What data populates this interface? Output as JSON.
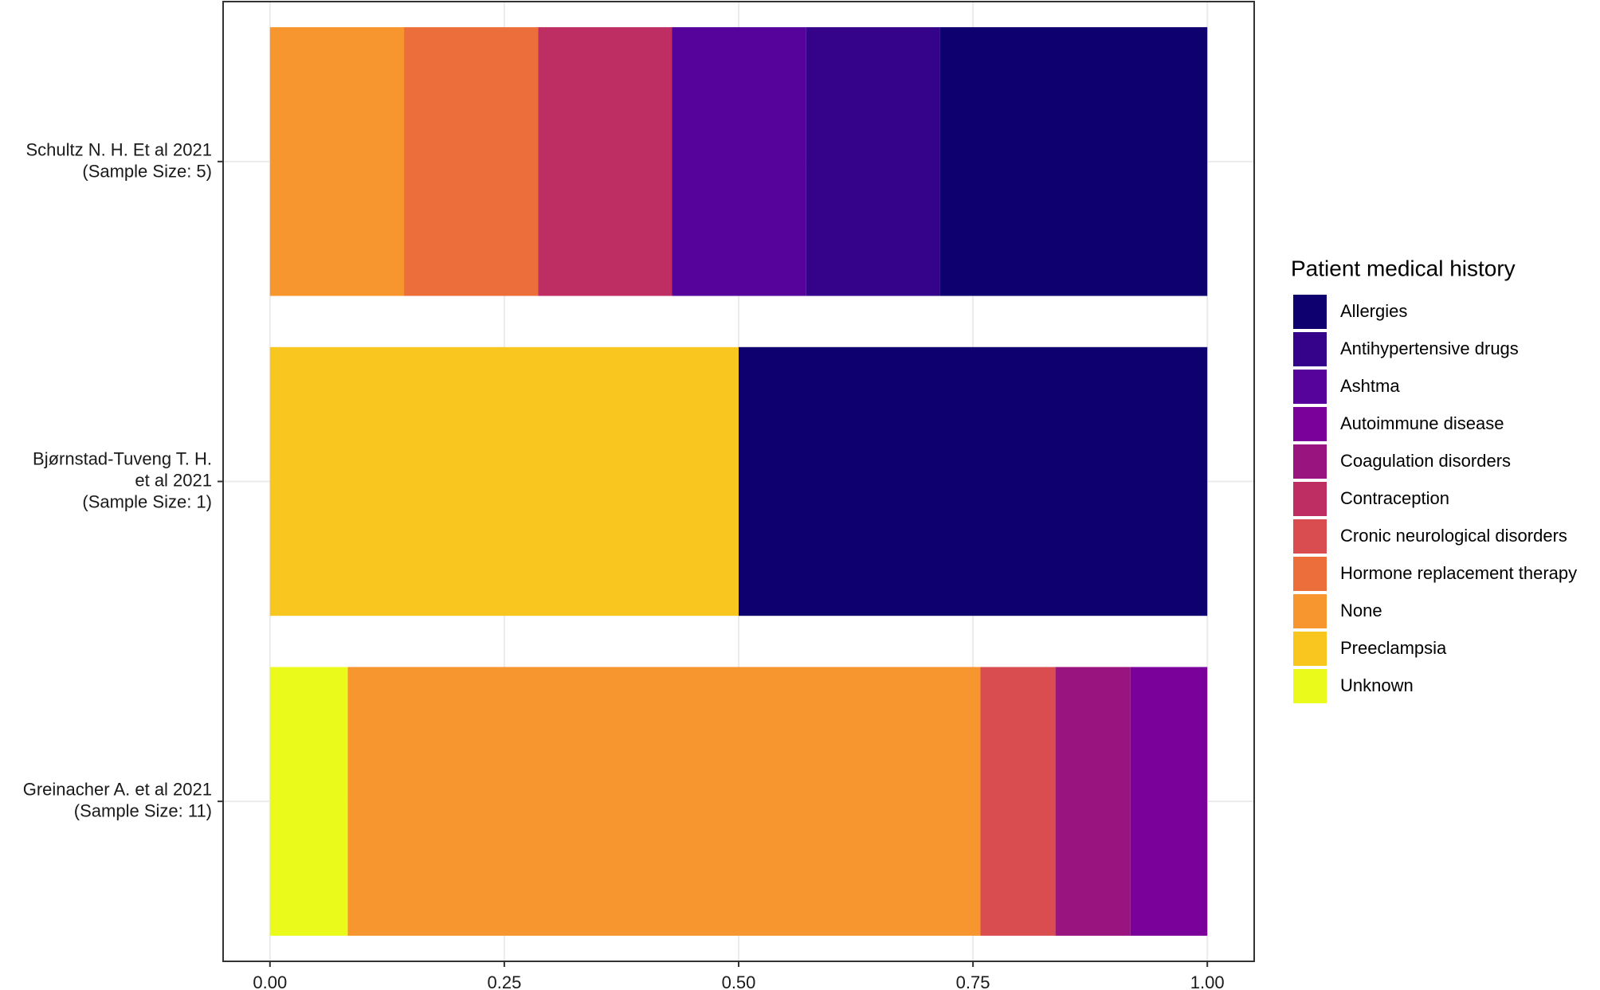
{
  "chart_data": {
    "type": "stacked-barh",
    "categories": [
      "Schultz N. H. Et al 2021\n(Sample Size: 5)",
      "Bjørnstad-Tuveng T. H.\net al 2021\n(Sample Size: 1)",
      "Greinacher A. et al 2021\n(Sample Size: 11)"
    ],
    "legend_title": "Patient medical history",
    "series": [
      {
        "name": "Allergies",
        "color": "#0e006e",
        "values": [
          0.285,
          0.5,
          null
        ]
      },
      {
        "name": "Antihypertensive drugs",
        "color": "#35028a",
        "values": [
          0.143,
          null,
          null
        ]
      },
      {
        "name": "Ashtma",
        "color": "#55039a",
        "values": [
          0.143,
          null,
          null
        ]
      },
      {
        "name": "Autoimmune disease",
        "color": "#7a029a",
        "values": [
          null,
          null,
          0.082
        ]
      },
      {
        "name": "Coagulation disorders",
        "color": "#9a1480",
        "values": [
          null,
          null,
          0.08
        ]
      },
      {
        "name": "Contraception",
        "color": "#bf2e62",
        "values": [
          0.143,
          null,
          null
        ]
      },
      {
        "name": "Cronic neurological disorders",
        "color": "#d94d50",
        "values": [
          null,
          null,
          0.08
        ]
      },
      {
        "name": "Hormone replacement therapy",
        "color": "#ec6f3b",
        "values": [
          0.143,
          null,
          null
        ]
      },
      {
        "name": "None",
        "color": "#f7962e",
        "values": [
          0.143,
          null,
          0.675
        ]
      },
      {
        "name": "Preeclampsia",
        "color": "#f9c51f",
        "values": [
          null,
          0.5,
          null
        ]
      },
      {
        "name": "Unknown",
        "color": "#eafb1c",
        "values": [
          null,
          null,
          0.083
        ]
      }
    ],
    "xlim": [
      -0.05,
      1.05
    ],
    "xticks": [
      {
        "value": 0,
        "label": "0.00"
      },
      {
        "value": 0.25,
        "label": "0.25"
      },
      {
        "value": 0.5,
        "label": "0.50"
      },
      {
        "value": 0.75,
        "label": "0.75"
      },
      {
        "value": 1,
        "label": "1.00"
      }
    ],
    "grid": true
  }
}
